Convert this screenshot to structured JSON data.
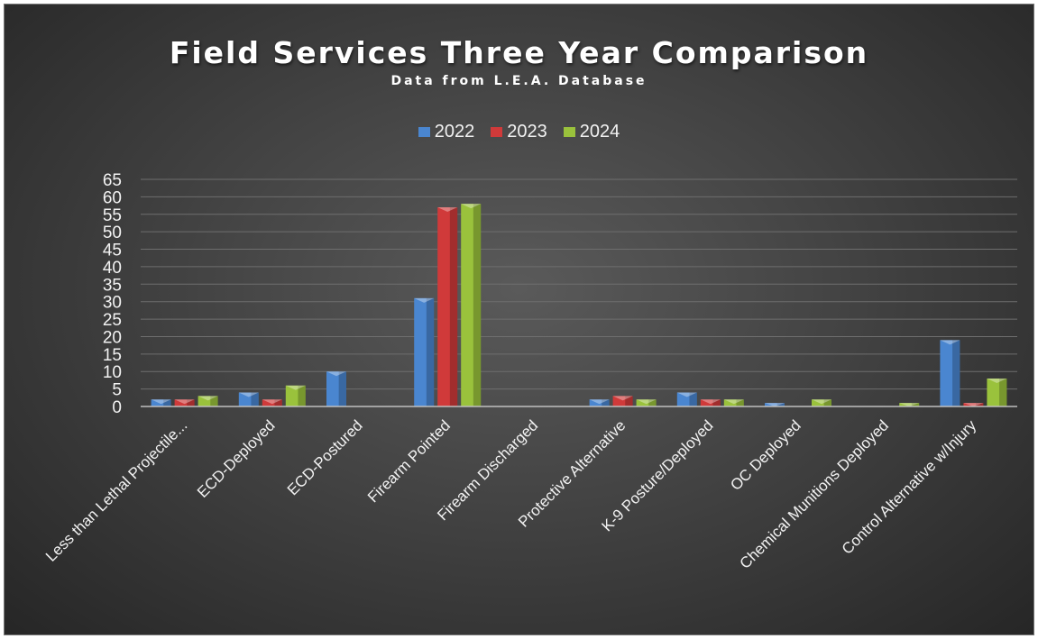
{
  "chart_data": {
    "type": "bar",
    "title": "Field Services Three Year Comparison",
    "subtitle": "Data from L.E.A. Database",
    "xlabel": "",
    "ylabel": "",
    "ylim": [
      0,
      65
    ],
    "yticks": [
      "0",
      "5",
      "10",
      "15",
      "20",
      "25",
      "30",
      "35",
      "40",
      "45",
      "50",
      "55",
      "60",
      "65"
    ],
    "grid": true,
    "legend_position": "top",
    "categories": [
      "Less than Lethal Projectile...",
      "ECD-Deployed",
      "ECD-Postured",
      "Firearm Pointed",
      "Firearm Discharged",
      "Protective Alternative",
      "K-9 Posture/Deployed",
      "OC Deployed",
      "Chemical Munitions Deployed",
      "Control Alternative w/Injury"
    ],
    "series": [
      {
        "name": "2022",
        "color": "#4a86d0",
        "values": [
          2,
          4,
          10,
          31,
          0,
          2,
          4,
          1,
          0,
          19
        ]
      },
      {
        "name": "2023",
        "color": "#d03a3a",
        "values": [
          2,
          2,
          0,
          57,
          0,
          3,
          2,
          0,
          0,
          1
        ]
      },
      {
        "name": "2024",
        "color": "#9ac23c",
        "values": [
          3,
          6,
          0,
          58,
          0,
          2,
          2,
          2,
          1,
          8
        ]
      }
    ]
  }
}
